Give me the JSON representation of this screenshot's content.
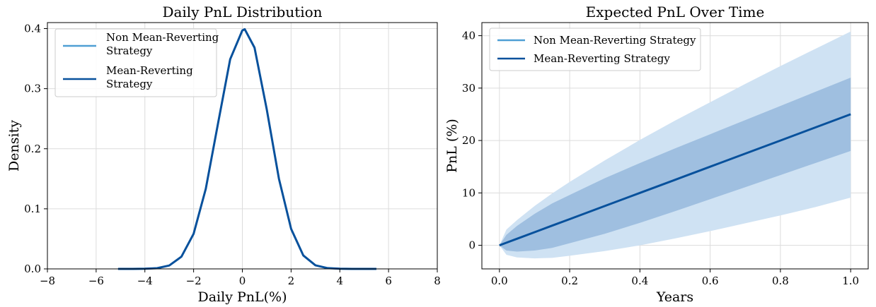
{
  "colors": {
    "non_mean_reverting": "#4f9fd4",
    "mean_reverting": "#08519c",
    "band_outer": "#cfe2f3",
    "band_inner": "#9fbfe0",
    "grid": "#dcdcdc"
  },
  "chart_data": [
    {
      "type": "line",
      "title": "Daily PnL Distribution",
      "xlabel": "Daily PnL(%)",
      "ylabel": "Density",
      "xlim": [
        -8,
        8
      ],
      "ylim": [
        0,
        0.41
      ],
      "xticks": [
        -8,
        -6,
        -4,
        -2,
        0,
        2,
        4,
        6,
        8
      ],
      "xtick_labels": [
        "−8",
        "−6",
        "−4",
        "−2",
        "0",
        "2",
        "4",
        "6",
        "8"
      ],
      "yticks": [
        0.0,
        0.1,
        0.2,
        0.3,
        0.4
      ],
      "ytick_labels": [
        "0.0",
        "0.1",
        "0.2",
        "0.3",
        "0.4"
      ],
      "grid": true,
      "legend_position": "top-left",
      "legend": [
        {
          "label_line1": "Non Mean-Reverting",
          "label_line2": "Strategy"
        },
        {
          "label_line1": "Mean-Reverting",
          "label_line2": "Strategy"
        }
      ],
      "series": [
        {
          "name": "Non Mean-Reverting Strategy",
          "color": "#4f9fd4",
          "x": [
            -5.1,
            -4.5,
            -4.0,
            -3.5,
            -3.0,
            -2.5,
            -2.0,
            -1.5,
            -1.0,
            -0.5,
            0.0,
            0.1,
            0.5,
            1.0,
            1.5,
            2.0,
            2.5,
            3.0,
            3.5,
            4.0,
            4.5,
            5.5
          ],
          "y": [
            0.0,
            0.0,
            0.0002,
            0.0012,
            0.0056,
            0.0203,
            0.0584,
            0.1332,
            0.242,
            0.349,
            0.397,
            0.3989,
            0.3683,
            0.2661,
            0.15,
            0.0667,
            0.0224,
            0.006,
            0.0013,
            0.0002,
            0.0,
            0.0
          ]
        },
        {
          "name": "Mean-Reverting Strategy",
          "color": "#08519c",
          "x": [
            -5.1,
            -4.5,
            -4.0,
            -3.5,
            -3.0,
            -2.5,
            -2.0,
            -1.5,
            -1.0,
            -0.5,
            0.0,
            0.1,
            0.5,
            1.0,
            1.5,
            2.0,
            2.5,
            3.0,
            3.5,
            4.0,
            4.5,
            5.5
          ],
          "y": [
            0.0,
            0.0,
            0.0002,
            0.0012,
            0.0056,
            0.0203,
            0.0584,
            0.1332,
            0.242,
            0.349,
            0.397,
            0.3989,
            0.3683,
            0.2661,
            0.15,
            0.0667,
            0.0224,
            0.006,
            0.0013,
            0.0002,
            0.0,
            0.0
          ]
        }
      ]
    },
    {
      "type": "area",
      "title": "Expected PnL Over Time",
      "xlabel": "Years",
      "ylabel": "PnL (%)",
      "xlim": [
        -0.05,
        1.05
      ],
      "ylim": [
        -4.5,
        42.5
      ],
      "xticks": [
        0.0,
        0.2,
        0.4,
        0.6,
        0.8,
        1.0
      ],
      "xtick_labels": [
        "0.0",
        "0.2",
        "0.4",
        "0.6",
        "0.8",
        "1.0"
      ],
      "yticks": [
        0,
        10,
        20,
        30,
        40
      ],
      "ytick_labels": [
        "0",
        "10",
        "20",
        "30",
        "40"
      ],
      "grid": true,
      "legend_position": "top-left",
      "legend": [
        {
          "label": "Non Mean-Reverting Strategy"
        },
        {
          "label": "Mean-Reverting Strategy"
        }
      ],
      "x": [
        0.0,
        0.02,
        0.05,
        0.1,
        0.15,
        0.2,
        0.3,
        0.4,
        0.5,
        0.6,
        0.7,
        0.8,
        0.9,
        1.0
      ],
      "series": [
        {
          "name": "Non Mean-Reverting Strategy",
          "color": "#4f9fd4",
          "mean": [
            0.0,
            0.5,
            1.25,
            2.5,
            3.75,
            5.0,
            7.5,
            10.0,
            12.5,
            15.0,
            17.5,
            20.0,
            22.5,
            25.0
          ],
          "lower": [
            0.0,
            -1.8,
            -2.3,
            -2.5,
            -2.4,
            -2.0,
            -1.1,
            0.0,
            1.3,
            2.7,
            4.2,
            5.7,
            7.3,
            9.1
          ],
          "upper": [
            0.0,
            3.0,
            4.8,
            7.5,
            9.9,
            12.1,
            16.2,
            20.1,
            23.8,
            27.3,
            30.8,
            34.2,
            37.5,
            40.8
          ]
        },
        {
          "name": "Mean-Reverting Strategy",
          "color": "#08519c",
          "mean": [
            0.0,
            0.5,
            1.25,
            2.5,
            3.75,
            5.0,
            7.5,
            10.0,
            12.5,
            15.0,
            17.5,
            20.0,
            22.5,
            25.0
          ],
          "lower": [
            0.0,
            -1.0,
            -1.2,
            -1.0,
            -0.5,
            0.4,
            2.2,
            4.3,
            6.5,
            8.8,
            11.1,
            13.4,
            15.7,
            18.0
          ],
          "upper": [
            0.0,
            2.0,
            3.7,
            6.0,
            8.0,
            9.6,
            12.8,
            15.7,
            18.5,
            21.2,
            23.9,
            26.6,
            29.3,
            32.0
          ]
        }
      ]
    }
  ]
}
